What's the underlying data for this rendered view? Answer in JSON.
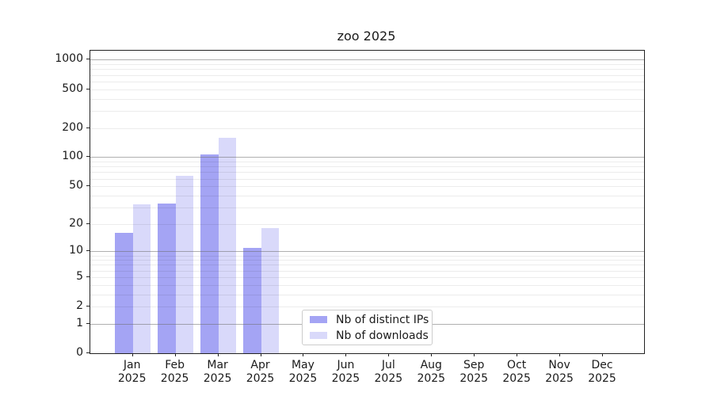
{
  "chart_data": {
    "type": "bar",
    "title": "zoo 2025",
    "categories": [
      "Jan 2025",
      "Feb 2025",
      "Mar 2025",
      "Apr 2025",
      "May 2025",
      "Jun 2025",
      "Jul 2025",
      "Aug 2025",
      "Sep 2025",
      "Oct 2025",
      "Nov 2025",
      "Dec 2025"
    ],
    "series": [
      {
        "name": "Nb of distinct IPs",
        "color": "#a4a4f4",
        "values": [
          16,
          33,
          107,
          11,
          0,
          0,
          0,
          0,
          0,
          0,
          0,
          0
        ]
      },
      {
        "name": "Nb of downloads",
        "color": "#d9d9fa",
        "values": [
          32,
          64,
          158,
          18,
          0,
          0,
          0,
          0,
          0,
          0,
          0,
          0
        ]
      }
    ],
    "yscale": "log1p",
    "ylim": [
      0,
      1230
    ],
    "ytick_labels": [
      0,
      1,
      2,
      5,
      10,
      20,
      50,
      100,
      200,
      500,
      1000
    ],
    "grid": "on",
    "legend_position": "inside bottom-center",
    "xlabel": "",
    "ylabel": ""
  },
  "colors": {
    "grid_major": "#b0b0b0",
    "grid_minor": "#ebebeb",
    "spine": "#222222",
    "text": "#1a1a1a"
  }
}
